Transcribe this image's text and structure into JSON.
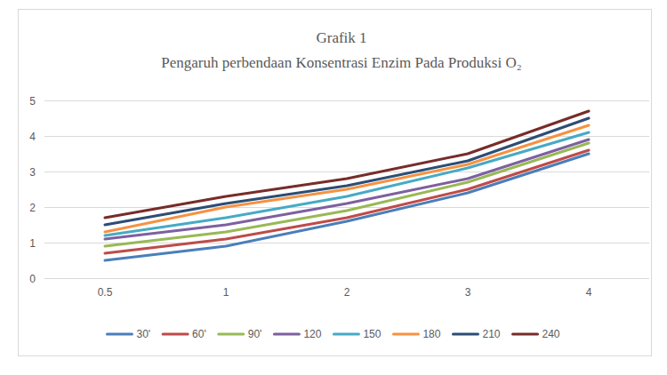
{
  "chart_data": {
    "type": "line",
    "title": "Grafik 1",
    "subtitle": "Pengaruh perbendaan Konsentrasi Enzim Pada Produksi O₂",
    "categories": [
      "0.5",
      "1",
      "2",
      "3",
      "4"
    ],
    "series": [
      {
        "name": "30'",
        "color": "#4a7ebb",
        "values": [
          0.5,
          0.9,
          1.6,
          2.4,
          3.5
        ]
      },
      {
        "name": "60'",
        "color": "#be4b48",
        "values": [
          0.7,
          1.1,
          1.7,
          2.5,
          3.6
        ]
      },
      {
        "name": "90'",
        "color": "#98b954",
        "values": [
          0.9,
          1.3,
          1.9,
          2.7,
          3.8
        ]
      },
      {
        "name": "120",
        "color": "#7d60a0",
        "values": [
          1.1,
          1.5,
          2.1,
          2.8,
          3.9
        ]
      },
      {
        "name": "150",
        "color": "#46aac5",
        "values": [
          1.2,
          1.7,
          2.3,
          3.1,
          4.1
        ]
      },
      {
        "name": "180",
        "color": "#f69240",
        "values": [
          1.3,
          2.0,
          2.5,
          3.2,
          4.3
        ]
      },
      {
        "name": "210",
        "color": "#2c4d75",
        "values": [
          1.5,
          2.1,
          2.6,
          3.3,
          4.5
        ]
      },
      {
        "name": "240",
        "color": "#772c2a",
        "values": [
          1.7,
          2.3,
          2.8,
          3.5,
          4.7
        ]
      }
    ],
    "ylim": [
      0,
      5
    ],
    "yticks": [
      0,
      1,
      2,
      3,
      4,
      5
    ],
    "grid": true,
    "legend": "bottom"
  }
}
